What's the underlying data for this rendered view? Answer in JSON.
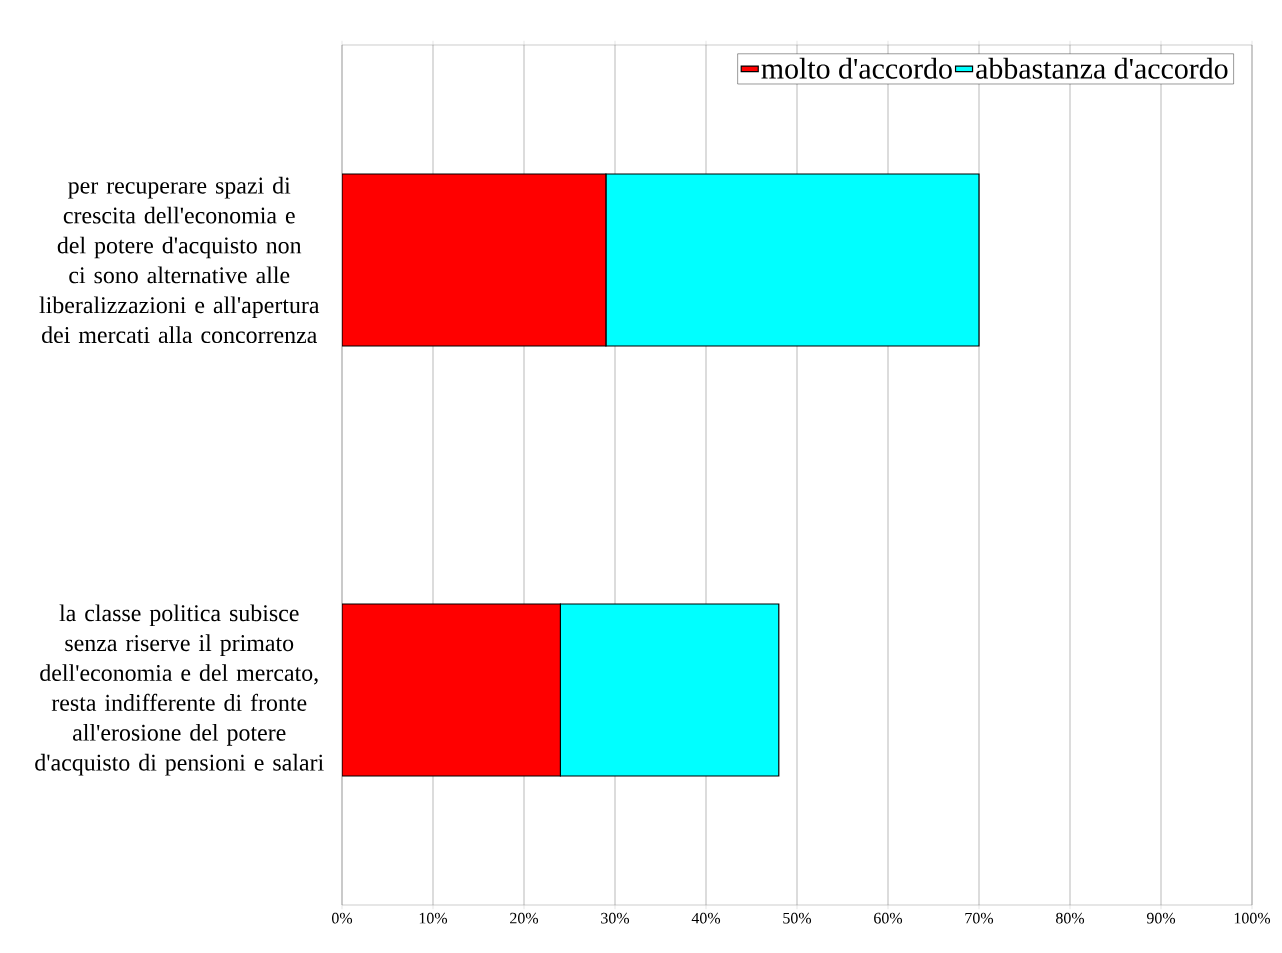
{
  "chart_data": {
    "type": "bar",
    "orientation": "horizontal",
    "stacked": true,
    "categories": [
      "per recuperare spazi di crescita dell'economia e del potere d'acquisto non ci sono alternative alle liberalizzazioni e all'apertura dei mercati alla concorrenza",
      "la classe politica subisce senza riserve il primato dell'economia e del mercato, resta indifferente di fronte all'erosione del potere d'acquisto di pensioni e salari"
    ],
    "series": [
      {
        "name": "molto d'accordo",
        "color": "#ff0000",
        "values": [
          29,
          24
        ]
      },
      {
        "name": "abbastanza d'accordo",
        "color": "#00ffff",
        "values": [
          41,
          24
        ]
      }
    ],
    "xlim": [
      0,
      100
    ],
    "xticks": [
      {
        "value": 0,
        "label": "0%"
      },
      {
        "value": 10,
        "label": "10%"
      },
      {
        "value": 20,
        "label": "20%"
      },
      {
        "value": 30,
        "label": "30%"
      },
      {
        "value": 40,
        "label": "40%"
      },
      {
        "value": 50,
        "label": "50%"
      },
      {
        "value": 60,
        "label": "60%"
      },
      {
        "value": 70,
        "label": "70%"
      },
      {
        "value": 80,
        "label": "80%"
      },
      {
        "value": 90,
        "label": "90%"
      },
      {
        "value": 100,
        "label": "100%"
      }
    ],
    "grid": "x",
    "legend": "top right"
  }
}
